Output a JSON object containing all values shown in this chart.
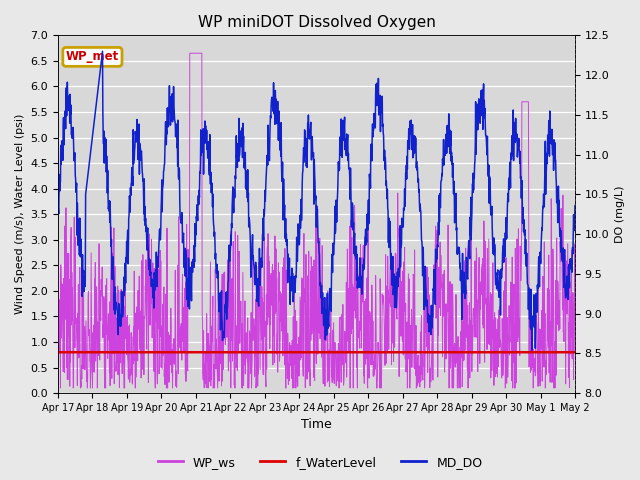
{
  "title": "WP miniDOT Dissolved Oxygen",
  "ylabel_left": "Wind Speed (m/s), Water Level (psi)",
  "ylabel_right": "DO (mg/L)",
  "xlabel": "Time",
  "ylim_left": [
    0.0,
    7.0
  ],
  "ylim_right": [
    8.0,
    12.5
  ],
  "fig_facecolor": "#e8e8e8",
  "ax_facecolor": "#d8d8d8",
  "wp_met_box_color": "#c8a000",
  "wp_met_text_color": "#cc0000",
  "legend_labels": [
    "WP_ws",
    "f_WaterLevel",
    "MD_DO"
  ],
  "ws_color": "#cc44dd",
  "wl_color": "#dd0000",
  "do_color": "#1122cc",
  "water_level_value": 0.8,
  "xtick_labels": [
    "Apr 17",
    "Apr 18",
    "Apr 19",
    "Apr 20",
    "Apr 21",
    "Apr 22",
    "Apr 23",
    "Apr 24",
    "Apr 25",
    "Apr 26",
    "Apr 27",
    "Apr 28",
    "Apr 29",
    "Apr 30",
    "May 1",
    "May 2"
  ],
  "n_points": 1500,
  "n_days": 15
}
